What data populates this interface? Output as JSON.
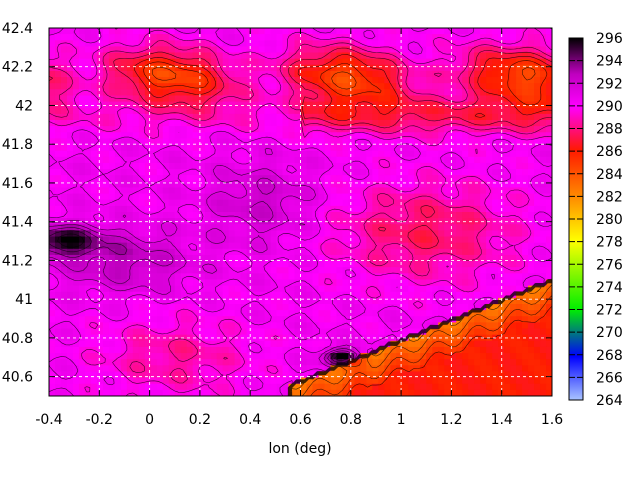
{
  "chart_data": {
    "type": "heatmap",
    "title": "",
    "xlabel": "lon (deg)",
    "ylabel": "",
    "xlim": [
      -0.4,
      1.6
    ],
    "ylim": [
      40.5,
      42.4
    ],
    "x_ticks": [
      "-0.4",
      "-0.2",
      "0",
      "0.2",
      "0.4",
      "0.6",
      "0.8",
      "1",
      "1.2",
      "1.4",
      "1.6"
    ],
    "y_ticks": [
      "40.6",
      "40.8",
      "41",
      "41.2",
      "41.4",
      "41.6",
      "41.8",
      "42",
      "42.2",
      "42.4"
    ],
    "grid": true,
    "contours": true,
    "colorbar": {
      "min": 264,
      "max": 296,
      "ticks": [
        "264",
        "266",
        "268",
        "270",
        "272",
        "274",
        "276",
        "278",
        "280",
        "282",
        "284",
        "286",
        "288",
        "290",
        "292",
        "294",
        "296"
      ],
      "colors": [
        "#9ab8ff",
        "#0000ff",
        "#00ff00",
        "#ffff00",
        "#ff8800",
        "#ff0000",
        "#ff00ff",
        "#000000"
      ]
    },
    "field_description_points": [
      {
        "lon": -0.35,
        "lat": 41.3,
        "value": 295
      },
      {
        "lon": -0.1,
        "lat": 41.2,
        "value": 293
      },
      {
        "lon": 0.2,
        "lat": 41.7,
        "value": 291
      },
      {
        "lon": 0.5,
        "lat": 41.5,
        "value": 293
      },
      {
        "lon": 0.9,
        "lat": 42.0,
        "value": 286
      },
      {
        "lon": 1.3,
        "lat": 42.2,
        "value": 283
      },
      {
        "lon": 1.0,
        "lat": 40.8,
        "value": 286
      },
      {
        "lon": 1.4,
        "lat": 40.7,
        "value": 286
      },
      {
        "lon": 0.8,
        "lat": 40.85,
        "value": 282
      },
      {
        "lon": 0.7,
        "lat": 40.65,
        "value": 293
      },
      {
        "lon": 1.2,
        "lat": 41.25,
        "value": 287
      },
      {
        "lon": 0.0,
        "lat": 40.7,
        "value": 289
      }
    ]
  }
}
